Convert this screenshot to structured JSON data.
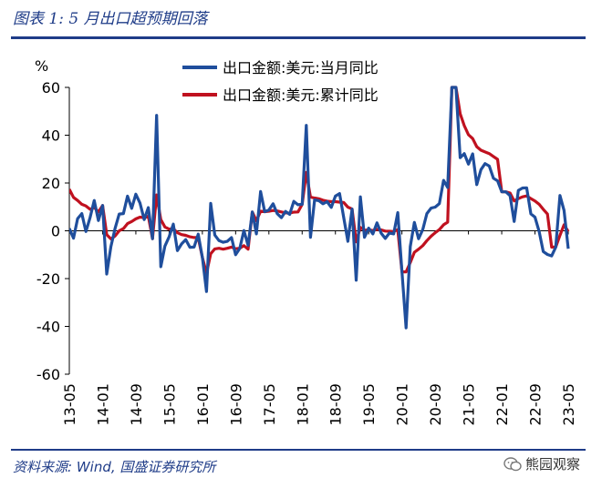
{
  "header": {
    "title": "图表 1:  5 月出口超预期回落"
  },
  "footer": {
    "source": "资料来源: Wind, 国盛证券研究所",
    "brand": "熊园观察"
  },
  "colors": {
    "blue": "#1f4e9c",
    "red": "#c0111f",
    "accent": "#1f3c88"
  },
  "chart_data": {
    "type": "line",
    "ylabel": "%",
    "ylim": [
      -60,
      60
    ],
    "yticks": [
      -60,
      -40,
      -20,
      0,
      20,
      40,
      60
    ],
    "xlim": [
      "2013-05",
      "2023-05"
    ],
    "xticks": [
      "13-05",
      "14-01",
      "14-09",
      "15-05",
      "16-01",
      "16-09",
      "17-05",
      "18-01",
      "18-09",
      "19-05",
      "20-01",
      "20-09",
      "21-05",
      "22-01",
      "22-09",
      "23-05"
    ],
    "series": [
      {
        "name": "出口金额:美元:当月同比",
        "color": "#1f4e9c",
        "values": [
          [
            "2013-05",
            1.0
          ],
          [
            "2013-06",
            -3.1
          ],
          [
            "2013-07",
            5.1
          ],
          [
            "2013-08",
            7.2
          ],
          [
            "2013-09",
            -0.3
          ],
          [
            "2013-10",
            5.6
          ],
          [
            "2013-11",
            12.7
          ],
          [
            "2013-12",
            4.3
          ],
          [
            "2014-01",
            10.6
          ],
          [
            "2014-02",
            -18.1
          ],
          [
            "2014-03",
            -6.6
          ],
          [
            "2014-04",
            0.9
          ],
          [
            "2014-05",
            7.0
          ],
          [
            "2014-06",
            7.2
          ],
          [
            "2014-07",
            14.5
          ],
          [
            "2014-08",
            9.4
          ],
          [
            "2014-09",
            15.3
          ],
          [
            "2014-10",
            11.6
          ],
          [
            "2014-11",
            4.7
          ],
          [
            "2014-12",
            9.7
          ],
          [
            "2015-01",
            -3.3
          ],
          [
            "2015-02",
            48.3
          ],
          [
            "2015-03",
            -15.0
          ],
          [
            "2015-04",
            -6.4
          ],
          [
            "2015-05",
            -2.5
          ],
          [
            "2015-06",
            2.8
          ],
          [
            "2015-07",
            -8.3
          ],
          [
            "2015-08",
            -5.5
          ],
          [
            "2015-09",
            -3.7
          ],
          [
            "2015-10",
            -6.9
          ],
          [
            "2015-11",
            -6.8
          ],
          [
            "2015-12",
            -1.4
          ],
          [
            "2016-01",
            -11.2
          ],
          [
            "2016-02",
            -25.4
          ],
          [
            "2016-03",
            11.5
          ],
          [
            "2016-04",
            -1.8
          ],
          [
            "2016-05",
            -4.1
          ],
          [
            "2016-06",
            -4.8
          ],
          [
            "2016-07",
            -4.4
          ],
          [
            "2016-08",
            -2.8
          ],
          [
            "2016-09",
            -10.0
          ],
          [
            "2016-10",
            -7.3
          ],
          [
            "2016-11",
            0.1
          ],
          [
            "2016-12",
            -6.1
          ],
          [
            "2017-01",
            7.9
          ],
          [
            "2017-02",
            -1.3
          ],
          [
            "2017-03",
            16.4
          ],
          [
            "2017-04",
            8.0
          ],
          [
            "2017-05",
            8.7
          ],
          [
            "2017-06",
            11.3
          ],
          [
            "2017-07",
            7.2
          ],
          [
            "2017-08",
            5.5
          ],
          [
            "2017-09",
            8.1
          ],
          [
            "2017-10",
            6.9
          ],
          [
            "2017-11",
            12.3
          ],
          [
            "2017-12",
            10.9
          ],
          [
            "2018-01",
            11.1
          ],
          [
            "2018-02",
            44.1
          ],
          [
            "2018-03",
            -2.7
          ],
          [
            "2018-04",
            12.9
          ],
          [
            "2018-05",
            12.6
          ],
          [
            "2018-06",
            11.3
          ],
          [
            "2018-07",
            12.2
          ],
          [
            "2018-08",
            9.8
          ],
          [
            "2018-09",
            14.5
          ],
          [
            "2018-10",
            15.6
          ],
          [
            "2018-11",
            5.4
          ],
          [
            "2018-12",
            -4.4
          ],
          [
            "2019-01",
            9.1
          ],
          [
            "2019-02",
            -20.7
          ],
          [
            "2019-03",
            14.2
          ],
          [
            "2019-04",
            -2.7
          ],
          [
            "2019-05",
            1.1
          ],
          [
            "2019-06",
            -1.3
          ],
          [
            "2019-07",
            3.3
          ],
          [
            "2019-08",
            -1.0
          ],
          [
            "2019-09",
            -3.2
          ],
          [
            "2019-10",
            -0.9
          ],
          [
            "2019-11",
            -1.3
          ],
          [
            "2019-12",
            7.6
          ],
          [
            "2020-01",
            -17.2
          ],
          [
            "2020-02",
            -40.6
          ],
          [
            "2020-03",
            -6.6
          ],
          [
            "2020-04",
            3.5
          ],
          [
            "2020-05",
            -3.3
          ],
          [
            "2020-06",
            0.5
          ],
          [
            "2020-07",
            7.2
          ],
          [
            "2020-08",
            9.5
          ],
          [
            "2020-09",
            9.9
          ],
          [
            "2020-10",
            11.4
          ],
          [
            "2020-11",
            21.1
          ],
          [
            "2020-12",
            18.1
          ],
          [
            "2021-01",
            60.0
          ],
          [
            "2021-02",
            60.0
          ],
          [
            "2021-03",
            30.6
          ],
          [
            "2021-04",
            32.3
          ],
          [
            "2021-05",
            27.9
          ],
          [
            "2021-06",
            32.2
          ],
          [
            "2021-07",
            19.3
          ],
          [
            "2021-08",
            25.6
          ],
          [
            "2021-09",
            28.1
          ],
          [
            "2021-10",
            27.1
          ],
          [
            "2021-11",
            22.0
          ],
          [
            "2021-12",
            20.9
          ],
          [
            "2022-01",
            16.3
          ],
          [
            "2022-02",
            16.3
          ],
          [
            "2022-03",
            14.7
          ],
          [
            "2022-04",
            3.9
          ],
          [
            "2022-05",
            16.9
          ],
          [
            "2022-06",
            17.9
          ],
          [
            "2022-07",
            18.0
          ],
          [
            "2022-08",
            7.1
          ],
          [
            "2022-09",
            5.7
          ],
          [
            "2022-10",
            -0.3
          ],
          [
            "2022-11",
            -8.7
          ],
          [
            "2022-12",
            -9.9
          ],
          [
            "2023-01",
            -10.5
          ],
          [
            "2023-02",
            -6.8
          ],
          [
            "2023-03",
            14.8
          ],
          [
            "2023-04",
            8.5
          ],
          [
            "2023-05",
            -7.5
          ]
        ]
      },
      {
        "name": "出口金额:美元:累计同比",
        "color": "#c0111f",
        "values": [
          [
            "2013-05",
            17.4
          ],
          [
            "2013-06",
            14.0
          ],
          [
            "2013-07",
            12.7
          ],
          [
            "2013-08",
            11.1
          ],
          [
            "2013-09",
            10.4
          ],
          [
            "2013-10",
            9.0
          ],
          [
            "2013-11",
            9.8
          ],
          [
            "2013-12",
            7.9
          ],
          [
            "2014-01",
            10.6
          ],
          [
            "2014-02",
            -1.6
          ],
          [
            "2014-03",
            -3.4
          ],
          [
            "2014-04",
            -2.2
          ],
          [
            "2014-05",
            0.0
          ],
          [
            "2014-06",
            0.9
          ],
          [
            "2014-07",
            3.0
          ],
          [
            "2014-08",
            3.9
          ],
          [
            "2014-09",
            5.0
          ],
          [
            "2014-10",
            5.7
          ],
          [
            "2014-11",
            5.5
          ],
          [
            "2014-12",
            6.1
          ],
          [
            "2015-01",
            -3.3
          ],
          [
            "2015-02",
            15.0
          ],
          [
            "2015-03",
            4.7
          ],
          [
            "2015-04",
            1.6
          ],
          [
            "2015-05",
            0.7
          ],
          [
            "2015-06",
            0.9
          ],
          [
            "2015-07",
            -0.8
          ],
          [
            "2015-08",
            -1.6
          ],
          [
            "2015-09",
            -1.9
          ],
          [
            "2015-10",
            -2.5
          ],
          [
            "2015-11",
            -2.8
          ],
          [
            "2015-12",
            -2.8
          ],
          [
            "2016-01",
            -11.2
          ],
          [
            "2016-02",
            -17.8
          ],
          [
            "2016-03",
            -9.6
          ],
          [
            "2016-04",
            -7.6
          ],
          [
            "2016-05",
            -7.3
          ],
          [
            "2016-06",
            -7.7
          ],
          [
            "2016-07",
            -7.3
          ],
          [
            "2016-08",
            -6.8
          ],
          [
            "2016-09",
            -7.5
          ],
          [
            "2016-10",
            -7.3
          ],
          [
            "2016-11",
            -6.2
          ],
          [
            "2016-12",
            -7.7
          ],
          [
            "2017-01",
            7.9
          ],
          [
            "2017-02",
            4.2
          ],
          [
            "2017-03",
            8.2
          ],
          [
            "2017-04",
            8.0
          ],
          [
            "2017-05",
            8.2
          ],
          [
            "2017-06",
            8.5
          ],
          [
            "2017-07",
            8.3
          ],
          [
            "2017-08",
            7.9
          ],
          [
            "2017-09",
            7.5
          ],
          [
            "2017-10",
            7.4
          ],
          [
            "2017-11",
            7.8
          ],
          [
            "2017-12",
            7.9
          ],
          [
            "2018-01",
            11.1
          ],
          [
            "2018-02",
            24.4
          ],
          [
            "2018-03",
            14.1
          ],
          [
            "2018-04",
            13.7
          ],
          [
            "2018-05",
            13.4
          ],
          [
            "2018-06",
            12.8
          ],
          [
            "2018-07",
            12.4
          ],
          [
            "2018-08",
            12.2
          ],
          [
            "2018-09",
            12.2
          ],
          [
            "2018-10",
            12.0
          ],
          [
            "2018-11",
            11.8
          ],
          [
            "2018-12",
            9.9
          ],
          [
            "2019-01",
            9.1
          ],
          [
            "2019-02",
            -4.6
          ],
          [
            "2019-03",
            1.4
          ],
          [
            "2019-04",
            0.2
          ],
          [
            "2019-05",
            0.4
          ],
          [
            "2019-06",
            0.1
          ],
          [
            "2019-07",
            0.6
          ],
          [
            "2019-08",
            0.4
          ],
          [
            "2019-09",
            -0.1
          ],
          [
            "2019-10",
            -0.2
          ],
          [
            "2019-11",
            -0.3
          ],
          [
            "2019-12",
            0.5
          ],
          [
            "2020-01",
            -17.2
          ],
          [
            "2020-02",
            -17.2
          ],
          [
            "2020-03",
            -13.3
          ],
          [
            "2020-04",
            -9.0
          ],
          [
            "2020-05",
            -7.7
          ],
          [
            "2020-06",
            -6.2
          ],
          [
            "2020-07",
            -4.1
          ],
          [
            "2020-08",
            -2.3
          ],
          [
            "2020-09",
            -0.8
          ],
          [
            "2020-10",
            0.5
          ],
          [
            "2020-11",
            2.5
          ],
          [
            "2020-12",
            3.6
          ],
          [
            "2021-01",
            60.0
          ],
          [
            "2021-02",
            60.0
          ],
          [
            "2021-03",
            49.0
          ],
          [
            "2021-04",
            44.0
          ],
          [
            "2021-05",
            40.2
          ],
          [
            "2021-06",
            38.6
          ],
          [
            "2021-07",
            35.2
          ],
          [
            "2021-08",
            33.7
          ],
          [
            "2021-09",
            33.0
          ],
          [
            "2021-10",
            32.3
          ],
          [
            "2021-11",
            31.1
          ],
          [
            "2021-12",
            29.9
          ],
          [
            "2022-01",
            16.3
          ],
          [
            "2022-02",
            16.3
          ],
          [
            "2022-03",
            15.8
          ],
          [
            "2022-04",
            12.5
          ],
          [
            "2022-05",
            13.5
          ],
          [
            "2022-06",
            14.2
          ],
          [
            "2022-07",
            14.6
          ],
          [
            "2022-08",
            13.5
          ],
          [
            "2022-09",
            12.5
          ],
          [
            "2022-10",
            11.1
          ],
          [
            "2022-11",
            9.0
          ],
          [
            "2022-12",
            7.0
          ],
          [
            "2023-01",
            -6.8
          ],
          [
            "2023-02",
            -6.8
          ],
          [
            "2023-03",
            -1.9
          ],
          [
            "2023-04",
            2.5
          ],
          [
            "2023-05",
            -0.3
          ]
        ]
      }
    ],
    "grid": false,
    "legend_position": "top"
  }
}
